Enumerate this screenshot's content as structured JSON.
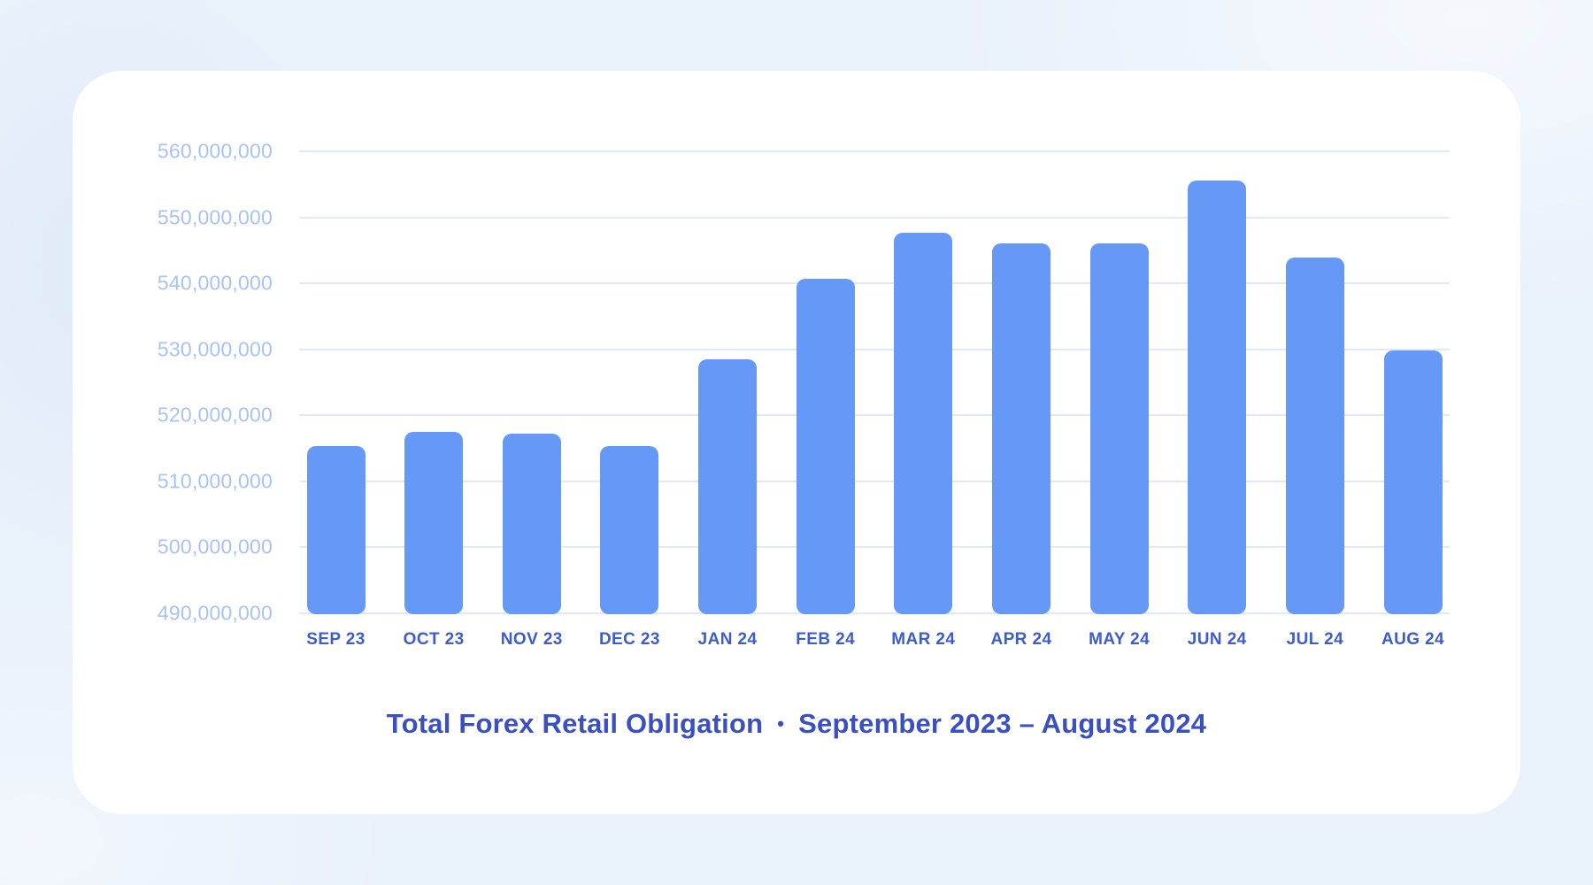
{
  "page": {
    "background_color": "#e9f1fb",
    "card_color": "#ffffff"
  },
  "chart_data": {
    "type": "bar",
    "categories": [
      "SEP 23",
      "OCT 23",
      "NOV 23",
      "DEC 23",
      "JAN 24",
      "FEB 24",
      "MAR 24",
      "APR 24",
      "MAY 24",
      "JUN 24",
      "JUL 24",
      "AUG 24"
    ],
    "values": [
      515400000,
      517500000,
      517200000,
      515400000,
      528500000,
      540700000,
      547600000,
      546100000,
      546000000,
      555600000,
      543900000,
      529800000
    ],
    "title": "Total Forex Retail Obligation",
    "separator": "•",
    "subtitle": "September 2023 – August 2024",
    "xlabel": "",
    "ylabel": "",
    "ylim": [
      490000000,
      560000000
    ],
    "ytick_step": 10000000,
    "ytick_labels": [
      "490,000,000",
      "500,000,000",
      "510,000,000",
      "520,000,000",
      "530,000,000",
      "540,000,000",
      "550,000,000",
      "560,000,000"
    ],
    "grid": true,
    "legend": "none",
    "bar_color": "#6598f7",
    "gridline_color": "#dfe9f9",
    "ytick_color": "#a8c3f2",
    "xtick_color": "#3d5ccd",
    "title_color": "#3a50c2"
  }
}
